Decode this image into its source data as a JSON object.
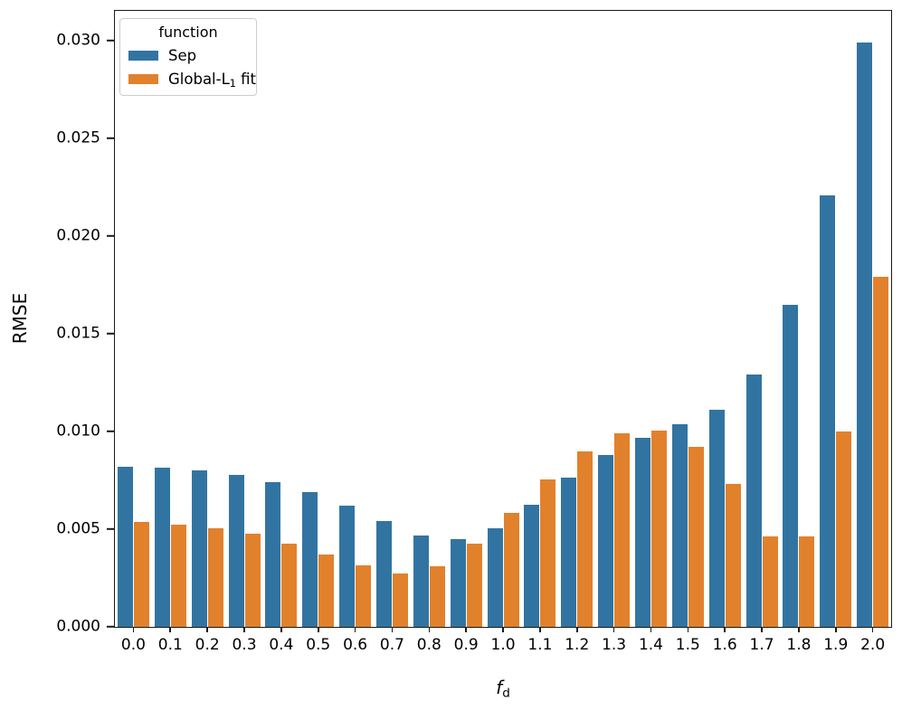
{
  "chart_data": {
    "type": "bar",
    "title": "",
    "ylabel": "RMSE",
    "xlabel": {
      "base": "f",
      "sub": "d"
    },
    "legend": {
      "title": "function",
      "position": "upper-left"
    },
    "grid": false,
    "axis_color": "#1a1a1a",
    "background": "#ffffff",
    "categories": [
      "0.0",
      "0.1",
      "0.2",
      "0.3",
      "0.4",
      "0.5",
      "0.6",
      "0.7",
      "0.8",
      "0.9",
      "1.0",
      "1.1",
      "1.2",
      "1.3",
      "1.4",
      "1.5",
      "1.6",
      "1.7",
      "1.8",
      "1.9",
      "2.0"
    ],
    "series": [
      {
        "name": "Sep",
        "label_parts": {
          "pre": "Sep",
          "sub": "",
          "post": ""
        },
        "color": "#3274a1",
        "values": [
          0.0082,
          0.00815,
          0.008,
          0.0078,
          0.0074,
          0.0069,
          0.0062,
          0.0054,
          0.0047,
          0.0045,
          0.00505,
          0.00625,
          0.00765,
          0.0088,
          0.0097,
          0.01035,
          0.0111,
          0.0129,
          0.0165,
          0.0221,
          0.0299
        ]
      },
      {
        "name": "Global-L1 fit",
        "label_parts": {
          "pre": "Global-L",
          "sub": "1",
          "post": " fit"
        },
        "color": "#e1812c",
        "values": [
          0.00535,
          0.00525,
          0.00505,
          0.00475,
          0.00425,
          0.0037,
          0.00315,
          0.00275,
          0.0031,
          0.00425,
          0.00585,
          0.00755,
          0.009,
          0.0099,
          0.01005,
          0.0092,
          0.0073,
          0.00465,
          0.00465,
          0.01,
          0.0179
        ]
      }
    ],
    "yticks": [
      {
        "label": "0.000",
        "value": 0.0
      },
      {
        "label": "0.005",
        "value": 0.005
      },
      {
        "label": "0.010",
        "value": 0.01
      },
      {
        "label": "0.015",
        "value": 0.015
      },
      {
        "label": "0.020",
        "value": 0.02
      },
      {
        "label": "0.025",
        "value": 0.025
      },
      {
        "label": "0.030",
        "value": 0.03
      }
    ],
    "ylim": [
      0,
      0.03153
    ]
  }
}
